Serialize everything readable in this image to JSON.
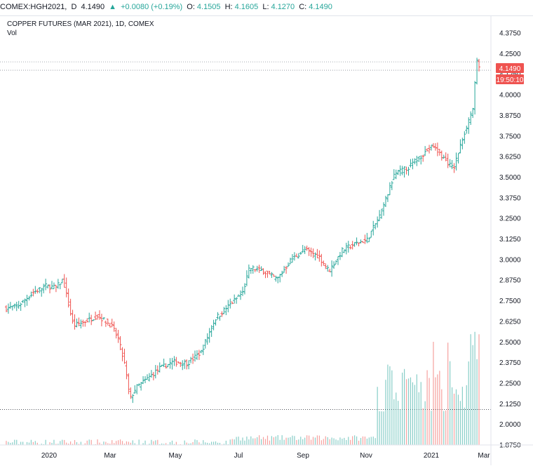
{
  "header": {
    "symbol": "COMEX:HGH2021,",
    "interval": "D",
    "last": "4.1490",
    "change": "+0.0080 (+0.19%)",
    "open_label": "O:",
    "open": "4.1505",
    "high_label": "H:",
    "high": "4.1605",
    "low_label": "L:",
    "low": "4.1270",
    "close_label": "C:",
    "close": "4.1490",
    "up_arrow": "▲"
  },
  "legend": {
    "title": "COPPER FUTURES (MAR 2021), 1D, COMEX",
    "volume": "Vol"
  },
  "price_badge": "4.1490",
  "time_badge": "19:50:10",
  "colors": {
    "up": "#26a69a",
    "down": "#ef5350",
    "badge": "#ef5350"
  },
  "chart_data": {
    "type": "bar",
    "y_ticks": [
      "4.3750",
      "4.2500",
      "4.1250",
      "4.0000",
      "3.8750",
      "3.7500",
      "3.6250",
      "3.5000",
      "3.3750",
      "3.2500",
      "3.1250",
      "3.0000",
      "2.8750",
      "2.7500",
      "2.6250",
      "2.5000",
      "2.3750",
      "2.2500",
      "2.1250",
      "2.0000",
      "1.8750"
    ],
    "x_ticks": [
      "2020",
      "Mar",
      "May",
      "Jul",
      "Sep",
      "Nov",
      "2021",
      "Mar"
    ],
    "ylim": [
      1.875,
      4.4
    ],
    "price_path": [
      {
        "d": 0,
        "p": 2.7
      },
      {
        "d": 20,
        "p": 2.72
      },
      {
        "d": 42,
        "p": 2.8
      },
      {
        "d": 60,
        "p": 2.84
      },
      {
        "d": 75,
        "p": 2.83
      },
      {
        "d": 85,
        "p": 2.88
      },
      {
        "d": 100,
        "p": 2.6
      },
      {
        "d": 115,
        "p": 2.62
      },
      {
        "d": 135,
        "p": 2.66
      },
      {
        "d": 155,
        "p": 2.6
      },
      {
        "d": 165,
        "p": 2.52
      },
      {
        "d": 175,
        "p": 2.35
      },
      {
        "d": 182,
        "p": 2.15
      },
      {
        "d": 190,
        "p": 2.22
      },
      {
        "d": 205,
        "p": 2.27
      },
      {
        "d": 225,
        "p": 2.34
      },
      {
        "d": 245,
        "p": 2.38
      },
      {
        "d": 265,
        "p": 2.37
      },
      {
        "d": 285,
        "p": 2.44
      },
      {
        "d": 305,
        "p": 2.64
      },
      {
        "d": 325,
        "p": 2.72
      },
      {
        "d": 345,
        "p": 2.8
      },
      {
        "d": 355,
        "p": 2.95
      },
      {
        "d": 375,
        "p": 2.93
      },
      {
        "d": 395,
        "p": 2.88
      },
      {
        "d": 415,
        "p": 3.0
      },
      {
        "d": 435,
        "p": 3.06
      },
      {
        "d": 455,
        "p": 3.02
      },
      {
        "d": 470,
        "p": 2.93
      },
      {
        "d": 490,
        "p": 3.06
      },
      {
        "d": 510,
        "p": 3.1
      },
      {
        "d": 525,
        "p": 3.12
      },
      {
        "d": 545,
        "p": 3.28
      },
      {
        "d": 565,
        "p": 3.52
      },
      {
        "d": 585,
        "p": 3.56
      },
      {
        "d": 600,
        "p": 3.62
      },
      {
        "d": 620,
        "p": 3.69
      },
      {
        "d": 635,
        "p": 3.62
      },
      {
        "d": 650,
        "p": 3.55
      },
      {
        "d": 665,
        "p": 3.76
      },
      {
        "d": 678,
        "p": 3.92
      },
      {
        "d": 684,
        "p": 4.2
      },
      {
        "d": 688,
        "p": 4.149
      }
    ],
    "reference_lines": [
      2.09,
      4.2,
      4.149
    ]
  }
}
